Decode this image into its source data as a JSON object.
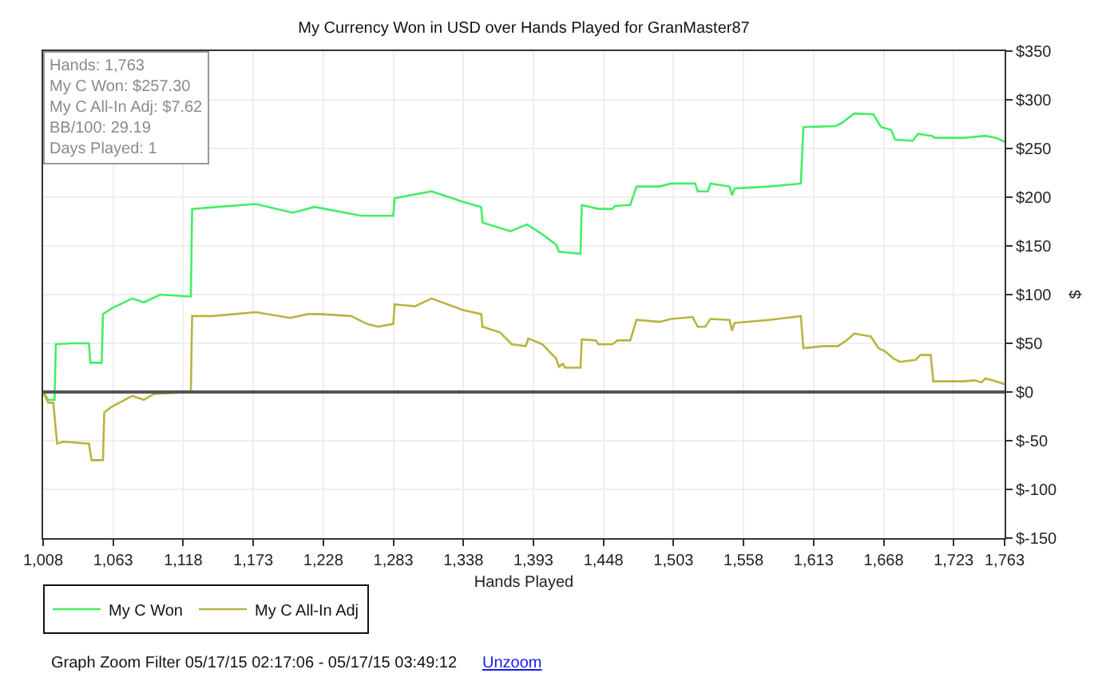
{
  "chart_data": {
    "type": "line",
    "title": "My Currency Won in USD over Hands Played for GranMaster87",
    "xlabel": "Hands Played",
    "ylabel": "$",
    "x": [
      1008,
      1012,
      1017,
      1018,
      1031,
      1044,
      1045,
      1054,
      1055,
      1062,
      1078,
      1087,
      1100,
      1124,
      1125,
      1175,
      1204,
      1221,
      1258,
      1283,
      1284,
      1313,
      1338,
      1352,
      1353,
      1375,
      1388,
      1400,
      1411,
      1413,
      1430,
      1431,
      1444,
      1455,
      1457,
      1469,
      1474,
      1492,
      1501,
      1520,
      1522,
      1530,
      1532,
      1547,
      1549,
      1551,
      1578,
      1603,
      1605,
      1630,
      1635,
      1645,
      1660,
      1666,
      1674,
      1677,
      1691,
      1695,
      1706,
      1708,
      1731,
      1748,
      1756,
      1763
    ],
    "series": [
      {
        "name": "My C Won",
        "color": "#44ee66",
        "values": [
          0,
          -8,
          -8,
          49,
          50,
          50,
          30,
          30,
          80,
          86,
          96,
          92,
          100,
          98,
          188,
          193,
          184,
          190,
          181,
          181,
          199,
          206,
          195,
          190,
          174,
          165,
          172,
          162,
          151,
          144,
          142,
          192,
          188,
          188,
          191,
          192,
          211,
          211,
          214,
          214,
          206,
          206,
          214,
          211,
          202,
          209,
          211,
          214,
          272,
          273,
          276,
          286,
          285,
          272,
          269,
          259,
          258,
          265,
          263,
          261,
          261,
          263,
          261,
          257
        ]
      },
      {
        "name": "My C All-In Adj",
        "color": "#b8b440",
        "x": [
          1008,
          1012,
          1016,
          1019,
          1024,
          1044,
          1046,
          1055,
          1056,
          1062,
          1078,
          1087,
          1095,
          1124,
          1125,
          1141,
          1175,
          1202,
          1216,
          1225,
          1250,
          1262,
          1271,
          1283,
          1284,
          1300,
          1313,
          1338,
          1352,
          1353,
          1367,
          1376,
          1387,
          1389,
          1400,
          1411,
          1413,
          1416,
          1418,
          1430,
          1431,
          1442,
          1444,
          1455,
          1459,
          1469,
          1474,
          1492,
          1501,
          1518,
          1522,
          1528,
          1532,
          1547,
          1549,
          1551,
          1578,
          1603,
          1605,
          1620,
          1632,
          1639,
          1645,
          1658,
          1664,
          1669,
          1676,
          1681,
          1693,
          1697,
          1705,
          1707,
          1731,
          1739,
          1745,
          1748,
          1756,
          1763
        ],
        "values": [
          0,
          -11,
          -11,
          -53,
          -51,
          -53,
          -70,
          -70,
          -21,
          -15,
          -4,
          -8,
          -2,
          0,
          78,
          78,
          82,
          76,
          80,
          80,
          78,
          70,
          67,
          70,
          90,
          88,
          96,
          84,
          80,
          67,
          61,
          49,
          47,
          55,
          49,
          34,
          26,
          29,
          25,
          25,
          54,
          53,
          49,
          49,
          53,
          53,
          74,
          72,
          75,
          77,
          67,
          67,
          75,
          74,
          63,
          71,
          74,
          78,
          45,
          47,
          47,
          53,
          60,
          57,
          45,
          42,
          34,
          31,
          33,
          38,
          38,
          11,
          11,
          12,
          10,
          14,
          11,
          8
        ]
      }
    ],
    "xlim": [
      1008,
      1763
    ],
    "xticks": [
      {
        "value": 1008,
        "label": "1,008"
      },
      {
        "value": 1063,
        "label": "1,063"
      },
      {
        "value": 1118,
        "label": "1,118"
      },
      {
        "value": 1173,
        "label": "1,173"
      },
      {
        "value": 1228,
        "label": "1,228"
      },
      {
        "value": 1283,
        "label": "1,283"
      },
      {
        "value": 1338,
        "label": "1,338"
      },
      {
        "value": 1393,
        "label": "1,393"
      },
      {
        "value": 1448,
        "label": "1,448"
      },
      {
        "value": 1503,
        "label": "1,503"
      },
      {
        "value": 1558,
        "label": "1,558"
      },
      {
        "value": 1613,
        "label": "1,613"
      },
      {
        "value": 1668,
        "label": "1,668"
      },
      {
        "value": 1723,
        "label": "1,723"
      },
      {
        "value": 1763,
        "label": "1,763"
      }
    ],
    "ylim": [
      -150,
      350
    ],
    "yticks": [
      {
        "value": -150,
        "label": "$-150"
      },
      {
        "value": -100,
        "label": "$-100"
      },
      {
        "value": -50,
        "label": "$-50"
      },
      {
        "value": 0,
        "label": "$0"
      },
      {
        "value": 50,
        "label": "$50"
      },
      {
        "value": 100,
        "label": "$100"
      },
      {
        "value": 150,
        "label": "$150"
      },
      {
        "value": 200,
        "label": "$200"
      },
      {
        "value": 250,
        "label": "$250"
      },
      {
        "value": 300,
        "label": "$300"
      },
      {
        "value": 350,
        "label": "$350"
      }
    ],
    "ref_lines": [
      {
        "axis": "y",
        "value": 0,
        "color": "#555555"
      }
    ],
    "grid": true,
    "legend": "bottom left",
    "marker": "none",
    "line_style": "solid",
    "annotations": [
      "Hands: 1,763",
      "My C Won: $257.30",
      "My C All-In Adj: $7.62",
      "BB/100: 29.19",
      "Days Played: 1",
      "Graph Zoom Filter 05/17/15 02:17:06 - 05/17/15 03:49:12",
      "Unzoom"
    ]
  }
}
